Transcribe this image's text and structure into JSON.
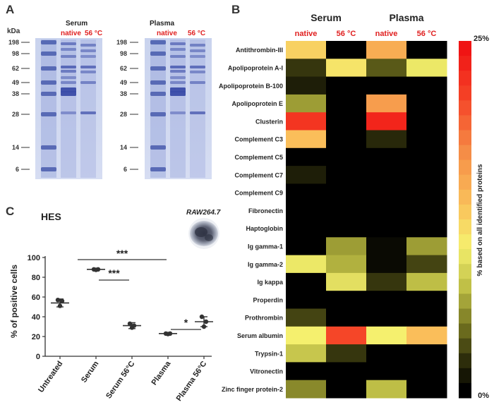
{
  "panels": {
    "a": "A",
    "b": "B",
    "c": "C"
  },
  "gel": {
    "kda_label": "kDa",
    "markers": [
      "198",
      "98",
      "62",
      "49",
      "38",
      "28",
      "14",
      "6"
    ],
    "serum_title": "Serum",
    "plasma_title": "Plasma",
    "lane_native": "native",
    "lane_heat": "56 °C"
  },
  "heatmap": {
    "group_serum": "Serum",
    "group_plasma": "Plasma",
    "col_labels": [
      "native",
      "56 °C",
      "native",
      "56 °C"
    ],
    "colorbar_top": "25%",
    "colorbar_bottom": "0%",
    "colorbar_title": "% based on all identified proteins",
    "rows": [
      {
        "name": "Antithrombin-III",
        "values": [
          0.5,
          0.0,
          0.6,
          0.0
        ]
      },
      {
        "name": "Apolipoprotein A-I",
        "values": [
          0.1,
          0.45,
          0.15,
          0.4
        ]
      },
      {
        "name": "Apolipoprotein B-100",
        "values": [
          0.06,
          0.0,
          0.0,
          0.0
        ]
      },
      {
        "name": "Apolipoprotein E",
        "values": [
          0.25,
          0.0,
          0.65,
          0.0
        ]
      },
      {
        "name": "Clusterin",
        "values": [
          0.9,
          0.0,
          0.95,
          0.0
        ]
      },
      {
        "name": "Complement C3",
        "values": [
          0.55,
          0.0,
          0.08,
          0.0
        ]
      },
      {
        "name": "Complement C5",
        "values": [
          0.0,
          0.0,
          0.0,
          0.0
        ]
      },
      {
        "name": "Complement C7",
        "values": [
          0.06,
          0.0,
          0.0,
          0.0
        ]
      },
      {
        "name": "Complement C9",
        "values": [
          0.0,
          0.0,
          0.0,
          0.0
        ]
      },
      {
        "name": "Fibronectin",
        "values": [
          0.0,
          0.0,
          0.0,
          0.0
        ]
      },
      {
        "name": "Haptoglobin",
        "values": [
          0.0,
          0.0,
          0.0,
          0.0
        ]
      },
      {
        "name": "Ig gamma-1",
        "values": [
          0.0,
          0.25,
          0.02,
          0.25
        ]
      },
      {
        "name": "Ig gamma-2",
        "values": [
          0.4,
          0.28,
          0.02,
          0.12
        ]
      },
      {
        "name": "Ig kappa",
        "values": [
          0.0,
          0.38,
          0.1,
          0.3
        ]
      },
      {
        "name": "Properdin",
        "values": [
          0.0,
          0.0,
          0.0,
          0.0
        ]
      },
      {
        "name": "Prothrombin",
        "values": [
          0.12,
          0.0,
          0.0,
          0.0
        ]
      },
      {
        "name": "Serum albumin",
        "values": [
          0.42,
          0.85,
          0.42,
          0.55
        ]
      },
      {
        "name": "Trypsin-1",
        "values": [
          0.32,
          0.1,
          0.0,
          0.0
        ]
      },
      {
        "name": "Vitronectin",
        "values": [
          0.0,
          0.0,
          0.0,
          0.0
        ]
      },
      {
        "name": "Zinc finger protein-2",
        "values": [
          0.22,
          0.0,
          0.3,
          0.0
        ]
      }
    ]
  },
  "dotplot": {
    "label": "HES",
    "cell_label": "RAW264.7",
    "ylabel": "% of positive cells",
    "yticks": [
      "0",
      "20",
      "40",
      "60",
      "80",
      "100"
    ],
    "categories": [
      "Untreated",
      "Serum",
      "Serum 56°C",
      "Plasma",
      "Plasma 56°C"
    ],
    "significance": [
      "***",
      "***",
      "*"
    ]
  },
  "chart_data": [
    {
      "type": "heatmap",
      "rows": [
        "Antithrombin-III",
        "Apolipoprotein A-I",
        "Apolipoprotein B-100",
        "Apolipoprotein E",
        "Clusterin",
        "Complement C3",
        "Complement C5",
        "Complement C7",
        "Complement C9",
        "Fibronectin",
        "Haptoglobin",
        "Ig gamma-1",
        "Ig gamma-2",
        "Ig kappa",
        "Properdin",
        "Prothrombin",
        "Serum albumin",
        "Trypsin-1",
        "Vitronectin",
        "Zinc finger protein-2"
      ],
      "columns": [
        "Serum native",
        "Serum 56 °C",
        "Plasma native",
        "Plasma 56 °C"
      ],
      "scale": [
        0,
        25
      ],
      "values_percent": [
        [
          12.5,
          0,
          15,
          0
        ],
        [
          2.5,
          11.25,
          3.75,
          10
        ],
        [
          1.5,
          0,
          0,
          0
        ],
        [
          6.25,
          0,
          16.25,
          0
        ],
        [
          22.5,
          0,
          23.75,
          0
        ],
        [
          13.75,
          0,
          2,
          0
        ],
        [
          0,
          0,
          0,
          0
        ],
        [
          1.5,
          0,
          0,
          0
        ],
        [
          0,
          0,
          0,
          0
        ],
        [
          0,
          0,
          0,
          0
        ],
        [
          0,
          0,
          0,
          0
        ],
        [
          0,
          6.25,
          0.5,
          6.25
        ],
        [
          10,
          7,
          0.5,
          3
        ],
        [
          0,
          9.5,
          2.5,
          7.5
        ],
        [
          0,
          0,
          0,
          0
        ],
        [
          3,
          0,
          0,
          0
        ],
        [
          10.5,
          21.25,
          10.5,
          13.75
        ],
        [
          8,
          2.5,
          0,
          0
        ],
        [
          0,
          0,
          0,
          0
        ],
        [
          5.5,
          0,
          7.5,
          0
        ]
      ]
    },
    {
      "type": "scatter",
      "categories": [
        "Untreated",
        "Serum",
        "Serum 56°C",
        "Plasma",
        "Plasma 56°C"
      ],
      "means": [
        54,
        88,
        31,
        23,
        35
      ],
      "sd": [
        4,
        1,
        3,
        1,
        5
      ],
      "points": [
        [
          57,
          51,
          56
        ],
        [
          88,
          87.5,
          88
        ],
        [
          33,
          29,
          31
        ],
        [
          23,
          22.5,
          23
        ],
        [
          40,
          30,
          35
        ]
      ],
      "ylabel": "% of positive cells",
      "ylim": [
        0,
        100
      ]
    }
  ]
}
